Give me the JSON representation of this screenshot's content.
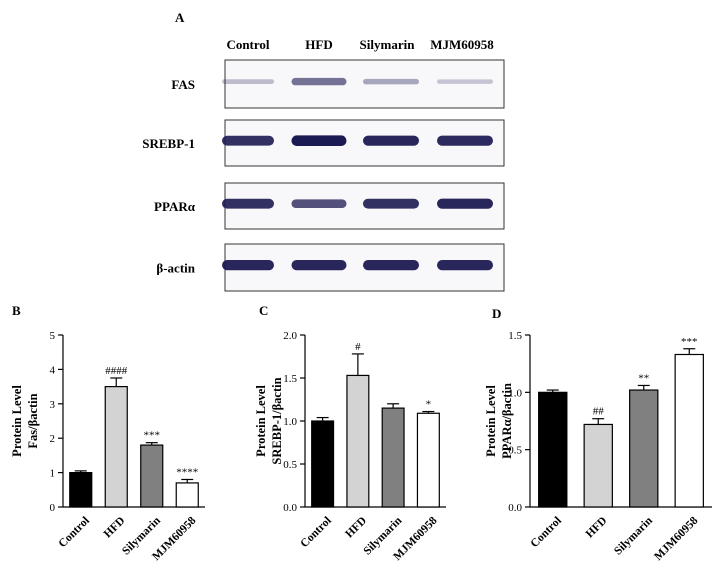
{
  "figure": {
    "panel_a_letter": "A",
    "lanes": [
      "Control",
      "HFD",
      "Silymarin",
      "MJM60958"
    ],
    "blots": [
      {
        "label": "FAS",
        "intensity": [
          0.22,
          0.55,
          0.32,
          0.18
        ]
      },
      {
        "label": "SREBP-1",
        "intensity": [
          0.85,
          0.95,
          0.9,
          0.88
        ]
      },
      {
        "label": "PPARα",
        "intensity": [
          0.85,
          0.7,
          0.85,
          0.9
        ]
      },
      {
        "label": "β-actin",
        "intensity": [
          0.9,
          0.9,
          0.9,
          0.9
        ]
      }
    ]
  },
  "colors": {
    "bar_fills": [
      "#000000",
      "#d3d3d3",
      "#808080",
      "#ffffff"
    ],
    "band_color": "#1c1a52",
    "blot_background": "#f8f8fb"
  },
  "chart_data": [
    {
      "type": "bar",
      "panel": "B",
      "categories": [
        "Control",
        "HFD",
        "Silymarin",
        "MJM60958"
      ],
      "values": [
        1.0,
        3.5,
        1.8,
        0.7
      ],
      "errors": [
        0.05,
        0.25,
        0.07,
        0.1
      ],
      "annotations": [
        "",
        "####",
        "***",
        "****"
      ],
      "ylabel_line1": "Protein Level",
      "ylabel_line2": "Fas/βactin",
      "ylim": [
        0,
        5
      ],
      "yticks": [
        "0",
        "1",
        "2",
        "3",
        "4",
        "5"
      ]
    },
    {
      "type": "bar",
      "panel": "C",
      "categories": [
        "Control",
        "HFD",
        "Silymarin",
        "MJM60958"
      ],
      "values": [
        1.0,
        1.53,
        1.15,
        1.09
      ],
      "errors": [
        0.04,
        0.25,
        0.05,
        0.02
      ],
      "annotations": [
        "",
        "#",
        "",
        "*"
      ],
      "ylabel_line1": "Protein Level",
      "ylabel_line2": "SREBP-1/βactin",
      "ylim": [
        0,
        2.0
      ],
      "yticks": [
        "0.0",
        "0.5",
        "1.0",
        "1.5",
        "2.0"
      ]
    },
    {
      "type": "bar",
      "panel": "D",
      "categories": [
        "Control",
        "HFD",
        "Silymarin",
        "MJM60958"
      ],
      "values": [
        1.0,
        0.72,
        1.02,
        1.33
      ],
      "errors": [
        0.02,
        0.05,
        0.04,
        0.05
      ],
      "annotations": [
        "",
        "##",
        "**",
        "***"
      ],
      "ylabel_line1": "Protein Level",
      "ylabel_line2": "PPARα/βactin",
      "ylim": [
        0,
        1.5
      ],
      "yticks": [
        "0.0",
        "0.5",
        "1.0",
        "1.5"
      ]
    }
  ]
}
